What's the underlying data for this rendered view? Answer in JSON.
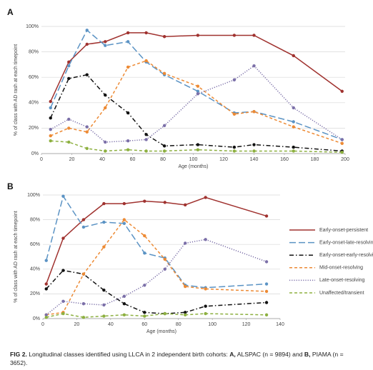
{
  "chart_data": [
    {
      "type": "line",
      "panel": "A",
      "y_label": "% of class with AD rash at each timepoint",
      "x_label": "Age (months)",
      "x": [
        6,
        18,
        30,
        42,
        57,
        69,
        81,
        103,
        127,
        140,
        166,
        198
      ],
      "xlim": [
        0,
        200
      ],
      "xticks": [
        0,
        20,
        40,
        60,
        80,
        100,
        120,
        140,
        160,
        180,
        200
      ],
      "ylim": [
        0,
        100
      ],
      "yticks": [
        {
          "value": 0,
          "label": "0%"
        },
        {
          "value": 20,
          "label": "20%"
        },
        {
          "value": 40,
          "label": "40%"
        },
        {
          "value": 60,
          "label": "60%"
        },
        {
          "value": 80,
          "label": "80%"
        },
        {
          "value": 100,
          "label": "100%"
        }
      ],
      "grid": true,
      "series": [
        {
          "color": "#a0322f",
          "style": "solid",
          "values": [
            41,
            72,
            86,
            88,
            95,
            95,
            92,
            93,
            93,
            93,
            77,
            49
          ]
        },
        {
          "color": "#5b93c4",
          "style": "long-dash",
          "values": [
            36,
            69,
            97,
            85,
            88,
            72,
            62,
            49,
            32,
            33,
            25,
            11
          ]
        },
        {
          "color": "#111111",
          "style": "dash-dot",
          "values": [
            28,
            59,
            62,
            46,
            32,
            15,
            6,
            7,
            5,
            7,
            5,
            2
          ]
        },
        {
          "color": "#ed8a34",
          "style": "dash",
          "values": [
            14,
            20,
            17,
            36,
            68,
            73,
            63,
            53,
            31,
            33,
            21,
            8
          ]
        },
        {
          "color": "#7b6fa8",
          "style": "dot",
          "values": [
            19,
            27,
            21,
            9,
            10,
            11,
            22,
            47,
            58,
            69,
            36,
            11
          ]
        },
        {
          "color": "#8db040",
          "style": "dash",
          "values": [
            10,
            9,
            4,
            2,
            3,
            2,
            2,
            3,
            2,
            2,
            2,
            1
          ]
        }
      ]
    },
    {
      "type": "line",
      "panel": "B",
      "y_label": "% of class with AD rash at each timepoint",
      "x_label": "Age (months)",
      "x": [
        2,
        12,
        24,
        36,
        48,
        60,
        72,
        84,
        96,
        132
      ],
      "xlim": [
        0,
        140
      ],
      "xticks": [
        0,
        20,
        40,
        60,
        80,
        100,
        120,
        140
      ],
      "ylim": [
        0,
        100
      ],
      "yticks": [
        {
          "value": 0,
          "label": "0%"
        },
        {
          "value": 20,
          "label": "20%"
        },
        {
          "value": 40,
          "label": "40%"
        },
        {
          "value": 60,
          "label": "60%"
        },
        {
          "value": 80,
          "label": "80%"
        },
        {
          "value": 100,
          "label": "100%"
        }
      ],
      "grid": true,
      "legend": "right",
      "series": [
        {
          "name": "Early-onset-persistent",
          "color": "#a0322f",
          "style": "solid",
          "values": [
            28,
            65,
            80,
            93,
            93,
            95,
            94,
            92,
            98,
            83
          ]
        },
        {
          "name": "Early-onset-late-resolving",
          "color": "#5b93c4",
          "style": "long-dash",
          "values": [
            47,
            99,
            74,
            78,
            77,
            53,
            49,
            27,
            25,
            28
          ]
        },
        {
          "name": "Early-onset-early-resolving",
          "color": "#111111",
          "style": "dash-dot",
          "values": [
            24,
            39,
            36,
            23,
            12,
            5,
            4,
            5,
            10,
            13
          ]
        },
        {
          "name": "Mid-onset-resolving",
          "color": "#ed8a34",
          "style": "dash",
          "values": [
            3,
            5,
            36,
            58,
            80,
            67,
            48,
            26,
            24,
            22
          ]
        },
        {
          "name": "Late-onset-resolving",
          "color": "#7b6fa8",
          "style": "dot",
          "values": [
            3,
            14,
            12,
            11,
            18,
            27,
            40,
            61,
            64,
            46
          ]
        },
        {
          "name": "Unaffected/transient",
          "color": "#8db040",
          "style": "dash",
          "values": [
            1,
            4,
            1,
            2,
            3,
            2,
            4,
            3,
            4,
            3
          ]
        }
      ]
    }
  ],
  "caption": [
    "FIG 2.",
    " Longitudinal classes identified using LLCA in 2 independent birth cohorts: ",
    "A,",
    " ALSPAC (n = 9894) and ",
    "B,",
    " PIAMA (n = 3652)."
  ]
}
